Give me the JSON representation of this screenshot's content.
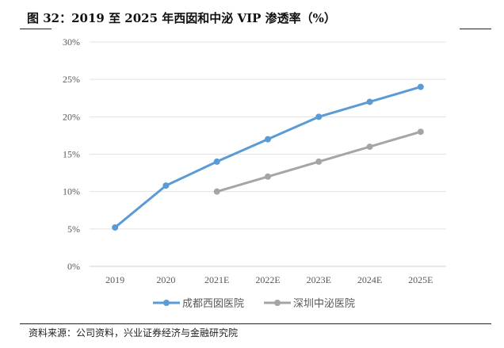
{
  "title": "图  32：2019 至 2025 年西囡和中泌 VIP 渗透率（%）",
  "source": "资料来源：公司资料，兴业证券经济与金融研究院",
  "chart_data": {
    "type": "line",
    "title": "图  32：2019 至 2025 年西囡和中泌 VIP 渗透率（%）",
    "xlabel": "",
    "ylabel": "",
    "categories": [
      "2019",
      "2020",
      "2021E",
      "2022E",
      "2023E",
      "2024E",
      "2025E"
    ],
    "ylim": [
      0,
      30
    ],
    "yticks": [
      0,
      5,
      10,
      15,
      20,
      25,
      30
    ],
    "ytick_labels": [
      "0%",
      "5%",
      "10%",
      "15%",
      "20%",
      "25%",
      "30%"
    ],
    "grid": true,
    "legend_position": "bottom",
    "series": [
      {
        "name": "成都西囡医院",
        "color": "#5b9bd5",
        "values": [
          5.2,
          10.8,
          14.0,
          17.0,
          20.0,
          22.0,
          24.0
        ]
      },
      {
        "name": "深圳中泌医院",
        "color": "#a5a5a5",
        "values": [
          null,
          null,
          10.0,
          12.0,
          14.0,
          16.0,
          18.0
        ]
      }
    ]
  }
}
